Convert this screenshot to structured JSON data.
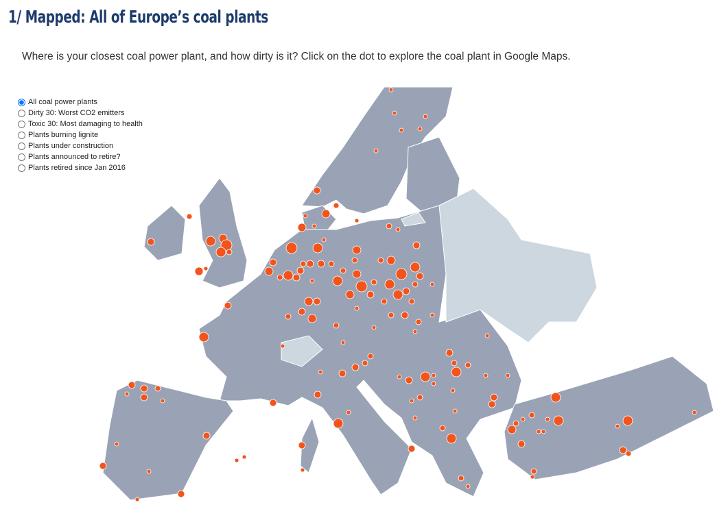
{
  "header": {
    "title": "1/ Mapped: All of Europe’s coal plants"
  },
  "intro": "Where is your closest coal power plant, and how dirty is it? Click on the dot to explore the coal plant in Google Maps.",
  "filters": {
    "selected": 0,
    "options": [
      "All coal power plants",
      "Dirty 30: Worst CO2 emitters",
      "Toxic 30: Most damaging to health",
      "Plants burning lignite",
      "Plants under construction",
      "Plants announced to retire?",
      "Plants retired since Jan 2016"
    ]
  }
}
